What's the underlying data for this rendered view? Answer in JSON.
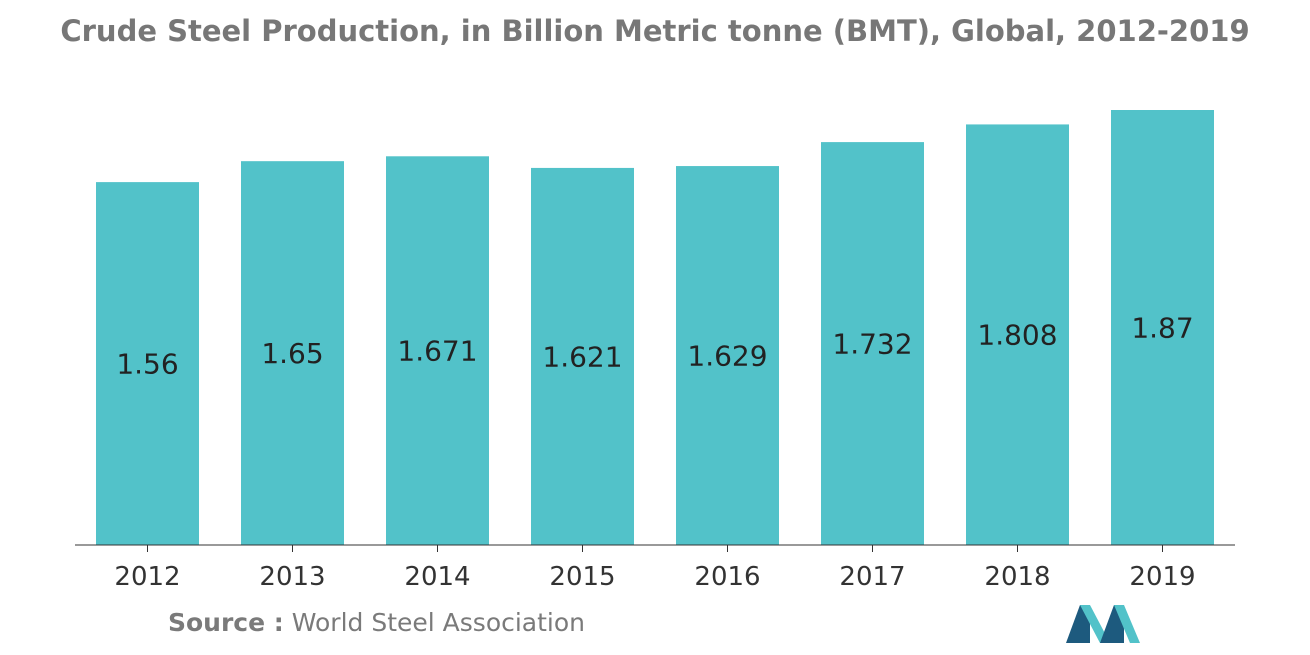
{
  "title": "Crude Steel Production, in Billion Metric tonne (BMT), Global, 2012-2019",
  "source": {
    "label": "Source :",
    "text": "World Steel Association"
  },
  "colors": {
    "bar": "#52C2C9",
    "axis": "#333333",
    "logo_dark": "#1D5A7E",
    "logo_light": "#52C2C9"
  },
  "logo_icon": "company-logo-icon",
  "chart_data": {
    "type": "bar",
    "categories": [
      "2012",
      "2013",
      "2014",
      "2015",
      "2016",
      "2017",
      "2018",
      "2019"
    ],
    "values": [
      1.56,
      1.65,
      1.671,
      1.621,
      1.629,
      1.732,
      1.808,
      1.87
    ],
    "value_labels": [
      "1.56",
      "1.65",
      "1.671",
      "1.621",
      "1.629",
      "1.732",
      "1.808",
      "1.87"
    ],
    "title": "Crude Steel Production, in Billion Metric tonne (BMT), Global, 2012-2019",
    "xlabel": "",
    "ylabel": "",
    "ylim": [
      0,
      1.87
    ],
    "grid": false,
    "legend": "none"
  }
}
